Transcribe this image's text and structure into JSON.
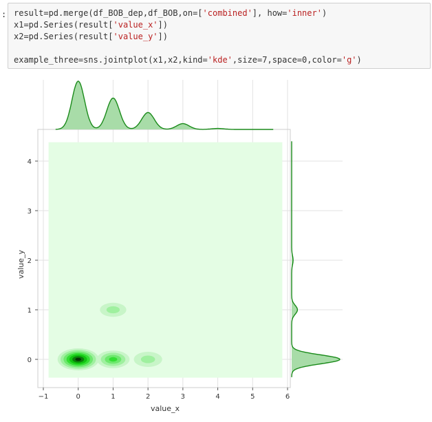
{
  "prompt": ":",
  "code_lines": [
    [
      {
        "t": "result=pd.merge(df_BOB_dep,df_BOB,on=[",
        "c": "op"
      },
      {
        "t": "'combined'",
        "c": "str"
      },
      {
        "t": "], how=",
        "c": "op"
      },
      {
        "t": "'inner'",
        "c": "str"
      },
      {
        "t": ")",
        "c": "op"
      }
    ],
    [
      {
        "t": "x1=pd.Series(result[",
        "c": "op"
      },
      {
        "t": "'value_x'",
        "c": "str"
      },
      {
        "t": "])",
        "c": "op"
      }
    ],
    [
      {
        "t": "x2=pd.Series(result[",
        "c": "op"
      },
      {
        "t": "'value_y'",
        "c": "str"
      },
      {
        "t": "])",
        "c": "op"
      }
    ],
    [],
    [
      {
        "t": "example_three=sns.jointplot(x1,x2,kind=",
        "c": "op"
      },
      {
        "t": "'kde'",
        "c": "str"
      },
      {
        "t": ",size=7,space=0,color=",
        "c": "op"
      },
      {
        "t": "'g'",
        "c": "str"
      },
      {
        "t": ")",
        "c": "op"
      }
    ]
  ],
  "chart_data": {
    "type": "kde-jointplot",
    "xlabel": "value_x",
    "ylabel": "value_y",
    "xlim": [
      -1,
      6
    ],
    "ylim": [
      -0.45,
      4.6
    ],
    "xticks": [
      -1,
      0,
      1,
      2,
      3,
      4,
      5,
      6
    ],
    "xtick_labels": [
      "−1",
      "0",
      "1",
      "2",
      "3",
      "4",
      "5",
      "6"
    ],
    "yticks": [
      0,
      1,
      2,
      3,
      4
    ],
    "ytick_labels": [
      "0",
      "1",
      "2",
      "3",
      "4"
    ],
    "kde_fill_extent": {
      "x": [
        -0.85,
        5.85
      ],
      "y": [
        -0.37,
        4.38
      ]
    },
    "joint_peaks": [
      {
        "x": 0.0,
        "y": 0.0,
        "relative_density": 1.0
      },
      {
        "x": 1.0,
        "y": 0.0,
        "relative_density": 0.55
      },
      {
        "x": 2.0,
        "y": 0.0,
        "relative_density": 0.3
      },
      {
        "x": 1.0,
        "y": 1.0,
        "relative_density": 0.2
      }
    ],
    "marginal_x_peaks": [
      {
        "x": 0.0,
        "relative_height": 1.0
      },
      {
        "x": 1.0,
        "relative_height": 0.65
      },
      {
        "x": 2.0,
        "relative_height": 0.35
      },
      {
        "x": 3.0,
        "relative_height": 0.12
      },
      {
        "x": 4.0,
        "relative_height": 0.02
      }
    ],
    "marginal_y_peaks": [
      {
        "y": 0.0,
        "relative_height": 1.0
      },
      {
        "y": 1.0,
        "relative_height": 0.12
      },
      {
        "y": 2.0,
        "relative_height": 0.03
      }
    ],
    "grid": true,
    "colors": {
      "line": "#1a8a1a",
      "marginal_fill": "#a8dca8",
      "kde_background": "#e4fde4",
      "levels": [
        "#c8f5c8",
        "#9ff09f",
        "#6ee86e",
        "#33de33",
        "#10c410",
        "#0b7d0b",
        "#063406"
      ]
    }
  }
}
